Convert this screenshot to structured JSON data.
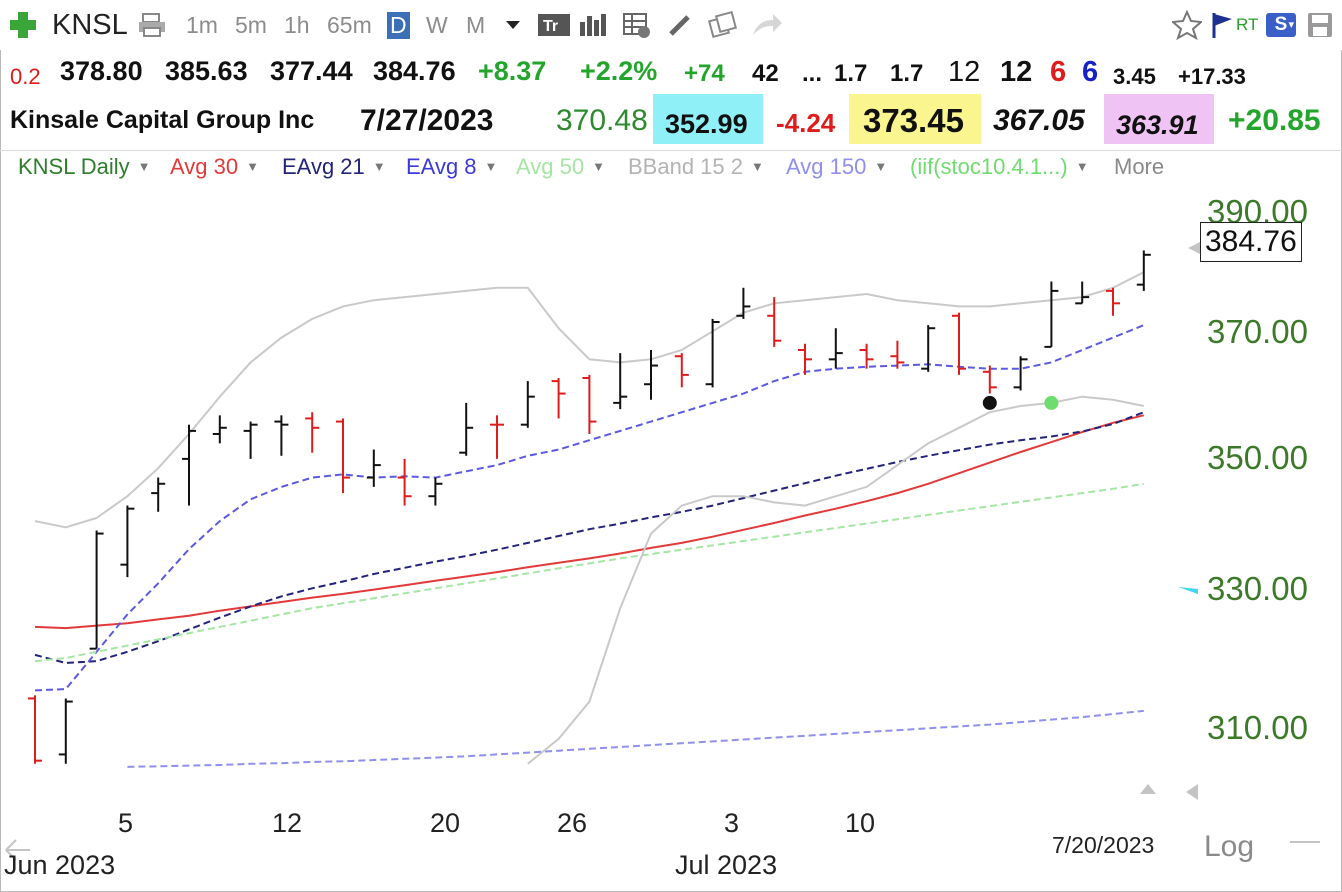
{
  "toolbar": {
    "symbol": "KNSL",
    "timeframes": [
      "1m",
      "5m",
      "1h",
      "65m",
      "D",
      "W",
      "M"
    ],
    "active_timeframe": "D",
    "rt_label": "RT",
    "s_label": "S"
  },
  "quote": {
    "change_small": "0.2",
    "open": "378.80",
    "high": "385.63",
    "low": "377.44",
    "close": "384.76",
    "change": "+8.37",
    "change_pct": "+2.2%",
    "v1": "+74",
    "v2": "42",
    "v3": "...",
    "v4": "1.7",
    "v5": "1.7",
    "v6": "12",
    "v7": "12",
    "v8": "6",
    "v9": "6",
    "v10": "3.45",
    "v11": "+17.33"
  },
  "info": {
    "company": "Kinsale Capital Group Inc",
    "date": "7/27/2023",
    "p1": "370.48",
    "p2": "352.99",
    "p3": "-4.24",
    "p4": "373.45",
    "p5": "367.05",
    "p6": "363.91",
    "p7": "+20.85"
  },
  "legend": [
    {
      "label": "KNSL Daily",
      "color": "#2d7d2d"
    },
    {
      "label": "Avg 30",
      "color": "#e23a3a"
    },
    {
      "label": "EAvg 21",
      "color": "#23237a"
    },
    {
      "label": "EAvg 8",
      "color": "#3a3ad8"
    },
    {
      "label": "Avg 50",
      "color": "#a4e6a4"
    },
    {
      "label": "BBand 15 2",
      "color": "#b3b3b3"
    },
    {
      "label": "Avg 150",
      "color": "#8f8fee"
    },
    {
      "label": "(iif(stoc10.4.1...)",
      "color": "#6fdc6f"
    },
    {
      "label": "More",
      "color": "#8a8a8a"
    }
  ],
  "chart_data": {
    "type": "ohlc",
    "y_axis_labels": [
      "390.00",
      "370.00",
      "350.00",
      "330.00",
      "310.00"
    ],
    "ylim": [
      302,
      392
    ],
    "x_tick_labels": [
      "5",
      "12",
      "20",
      "26",
      "3",
      "10"
    ],
    "x_month_labels": [
      "Jun 2023",
      "Jul 2023"
    ],
    "last_price": "384.76",
    "date_readout": "7/20/2023",
    "scale_label": "Log",
    "bars": [
      {
        "o": 313.5,
        "h": 314.0,
        "l": 303.0,
        "c": 303.5,
        "dir": "down"
      },
      {
        "o": 304.5,
        "h": 313.5,
        "l": 303.0,
        "c": 313.0,
        "dir": "up"
      },
      {
        "o": 321.5,
        "h": 340.5,
        "l": 321.5,
        "c": 340.0,
        "dir": "up"
      },
      {
        "o": 335.0,
        "h": 344.5,
        "l": 333.0,
        "c": 344.0,
        "dir": "up"
      },
      {
        "o": 346.5,
        "h": 349.0,
        "l": 343.5,
        "c": 348.0,
        "dir": "up"
      },
      {
        "o": 352.0,
        "h": 357.5,
        "l": 344.5,
        "c": 356.5,
        "dir": "up"
      },
      {
        "o": 356.0,
        "h": 359.0,
        "l": 354.5,
        "c": 357.0,
        "dir": "up"
      },
      {
        "o": 356.5,
        "h": 358.0,
        "l": 352.0,
        "c": 357.5,
        "dir": "up"
      },
      {
        "o": 358.0,
        "h": 359.0,
        "l": 352.5,
        "c": 357.5,
        "dir": "up"
      },
      {
        "o": 358.5,
        "h": 359.5,
        "l": 353.0,
        "c": 357.0,
        "dir": "down"
      },
      {
        "o": 358.0,
        "h": 358.5,
        "l": 346.5,
        "c": 349.0,
        "dir": "down"
      },
      {
        "o": 349.0,
        "h": 353.5,
        "l": 347.5,
        "c": 351.0,
        "dir": "up"
      },
      {
        "o": 349.0,
        "h": 352.0,
        "l": 344.5,
        "c": 346.0,
        "dir": "down"
      },
      {
        "o": 346.0,
        "h": 349.0,
        "l": 344.5,
        "c": 348.0,
        "dir": "up"
      },
      {
        "o": 353.0,
        "h": 361.0,
        "l": 352.5,
        "c": 357.0,
        "dir": "up"
      },
      {
        "o": 357.5,
        "h": 359.0,
        "l": 352.0,
        "c": 357.5,
        "dir": "down"
      },
      {
        "o": 357.5,
        "h": 364.5,
        "l": 357.0,
        "c": 362.0,
        "dir": "up"
      },
      {
        "o": 364.5,
        "h": 365.0,
        "l": 358.5,
        "c": 362.5,
        "dir": "down"
      },
      {
        "o": 365.0,
        "h": 365.5,
        "l": 356.0,
        "c": 358.0,
        "dir": "down"
      },
      {
        "o": 361.0,
        "h": 369.0,
        "l": 360.0,
        "c": 362.0,
        "dir": "up"
      },
      {
        "o": 364.0,
        "h": 369.5,
        "l": 361.5,
        "c": 367.0,
        "dir": "up"
      },
      {
        "o": 368.5,
        "h": 369.0,
        "l": 363.5,
        "c": 365.5,
        "dir": "down"
      },
      {
        "o": 364.0,
        "h": 374.5,
        "l": 363.5,
        "c": 374.0,
        "dir": "up"
      },
      {
        "o": 375.0,
        "h": 379.5,
        "l": 374.5,
        "c": 376.5,
        "dir": "up"
      },
      {
        "o": 375.0,
        "h": 378.0,
        "l": 370.0,
        "c": 371.0,
        "dir": "down"
      },
      {
        "o": 369.5,
        "h": 370.5,
        "l": 365.5,
        "c": 368.0,
        "dir": "down"
      },
      {
        "o": 368.0,
        "h": 373.0,
        "l": 366.5,
        "c": 369.0,
        "dir": "up"
      },
      {
        "o": 369.5,
        "h": 370.5,
        "l": 366.5,
        "c": 368.0,
        "dir": "down"
      },
      {
        "o": 368.5,
        "h": 371.0,
        "l": 366.5,
        "c": 367.5,
        "dir": "down"
      },
      {
        "o": 366.5,
        "h": 373.5,
        "l": 366.0,
        "c": 373.0,
        "dir": "up"
      },
      {
        "o": 375.0,
        "h": 375.5,
        "l": 365.5,
        "c": 366.5,
        "dir": "down"
      },
      {
        "o": 366.0,
        "h": 367.0,
        "l": 362.5,
        "c": 363.5,
        "dir": "down"
      },
      {
        "o": 363.5,
        "h": 368.5,
        "l": 363.0,
        "c": 368.0,
        "dir": "up"
      },
      {
        "o": 370.0,
        "h": 380.5,
        "l": 370.0,
        "c": 379.0,
        "dir": "up"
      },
      {
        "o": 377.0,
        "h": 380.5,
        "l": 377.0,
        "c": 378.0,
        "dir": "up"
      },
      {
        "o": 379.0,
        "h": 379.5,
        "l": 375.0,
        "c": 377.0,
        "dir": "down"
      },
      {
        "o": 380.0,
        "h": 385.5,
        "l": 379.0,
        "c": 384.8,
        "dir": "up"
      }
    ],
    "series": [
      {
        "name": "Avg 30",
        "style": "solid",
        "color": "#e23a3a",
        "values": [
          325.0,
          324.8,
          325.2,
          325.6,
          326.2,
          326.8,
          327.6,
          328.3,
          329.0,
          329.7,
          330.3,
          331.0,
          331.7,
          332.4,
          333.1,
          333.8,
          334.6,
          335.3,
          336.0,
          336.8,
          337.7,
          338.5,
          339.5,
          340.6,
          341.7,
          342.9,
          344.0,
          345.2,
          346.5,
          348.0,
          349.7,
          351.4,
          353.1,
          354.7,
          356.3,
          357.8,
          359.0
        ]
      },
      {
        "name": "EAvg 21",
        "style": "dashed",
        "color": "#23237a",
        "values": [
          320.5,
          319.2,
          319.5,
          321.0,
          322.7,
          324.6,
          326.5,
          328.3,
          329.9,
          331.2,
          332.3,
          333.5,
          334.5,
          335.5,
          336.4,
          337.4,
          338.5,
          339.6,
          340.7,
          341.6,
          342.6,
          343.5,
          344.5,
          345.7,
          346.9,
          348.1,
          349.3,
          350.4,
          351.5,
          352.5,
          353.4,
          354.3,
          355.0,
          355.6,
          356.4,
          357.6,
          359.5
        ]
      },
      {
        "name": "EAvg 8",
        "style": "dashed",
        "color": "#5a5ae0",
        "values": [
          314.8,
          315.0,
          321.0,
          327.0,
          332.0,
          337.5,
          342.0,
          345.5,
          347.5,
          349.0,
          349.5,
          349.0,
          349.2,
          349.0,
          350.0,
          351.0,
          352.5,
          353.5,
          355.0,
          356.5,
          358.0,
          359.5,
          361.0,
          362.5,
          364.5,
          366.0,
          366.5,
          366.8,
          367.0,
          367.2,
          366.8,
          366.5,
          366.5,
          367.5,
          369.5,
          371.5,
          373.5
        ]
      },
      {
        "name": "Avg 50",
        "style": "dashed",
        "color": "#a4e6a4",
        "values": [
          319.5,
          320.0,
          321.0,
          322.0,
          323.0,
          324.0,
          325.0,
          326.0,
          327.0,
          328.0,
          328.8,
          329.6,
          330.4,
          331.2,
          332.0,
          332.8,
          333.6,
          334.4,
          335.2,
          336.0,
          336.7,
          337.4,
          338.1,
          338.8,
          339.5,
          340.2,
          340.9,
          341.6,
          342.3,
          343.0,
          343.7,
          344.4,
          345.1,
          345.8,
          346.5,
          347.2,
          348.0
        ]
      },
      {
        "name": "BBand upper",
        "style": "solid",
        "color": "#c9c9c9",
        "values": [
          342.0,
          341.0,
          342.5,
          346.0,
          350.5,
          356.0,
          362.0,
          367.5,
          371.5,
          374.5,
          376.5,
          377.5,
          378.0,
          378.5,
          379.0,
          379.5,
          379.5,
          373.0,
          368.0,
          367.5,
          368.0,
          369.5,
          372.5,
          375.5,
          377.0,
          377.5,
          378.0,
          378.5,
          377.5,
          377.0,
          376.5,
          376.5,
          377.0,
          377.5,
          378.0,
          379.5,
          382.0
        ]
      },
      {
        "name": "BBand lower",
        "style": "solid",
        "color": "#c9c9c9",
        "values": [
          null,
          null,
          null,
          null,
          null,
          null,
          null,
          null,
          null,
          null,
          null,
          null,
          null,
          null,
          null,
          null,
          303.0,
          307.0,
          313.0,
          328.0,
          340.0,
          344.5,
          346.0,
          346.0,
          345.0,
          344.5,
          346.0,
          347.5,
          351.0,
          354.5,
          357.0,
          359.5,
          360.5,
          361.0,
          362.0,
          361.5,
          360.5
        ]
      },
      {
        "name": "Avg 150",
        "style": "dashed",
        "color": "#8f8fee",
        "values": [
          null,
          null,
          null,
          302.5,
          302.6,
          302.7,
          302.8,
          303.0,
          303.1,
          303.3,
          303.4,
          303.6,
          303.8,
          304.0,
          304.2,
          304.5,
          304.8,
          305.1,
          305.4,
          305.7,
          306.0,
          306.3,
          306.6,
          306.9,
          307.2,
          307.5,
          307.8,
          308.1,
          308.4,
          308.7,
          309.0,
          309.3,
          309.7,
          310.1,
          310.5,
          311.0,
          311.5
        ]
      }
    ],
    "markers": [
      {
        "bar": 31,
        "value": 361.0,
        "color": "#111111"
      },
      {
        "bar": 33,
        "value": 361.0,
        "color": "#6fdc6f"
      }
    ]
  }
}
